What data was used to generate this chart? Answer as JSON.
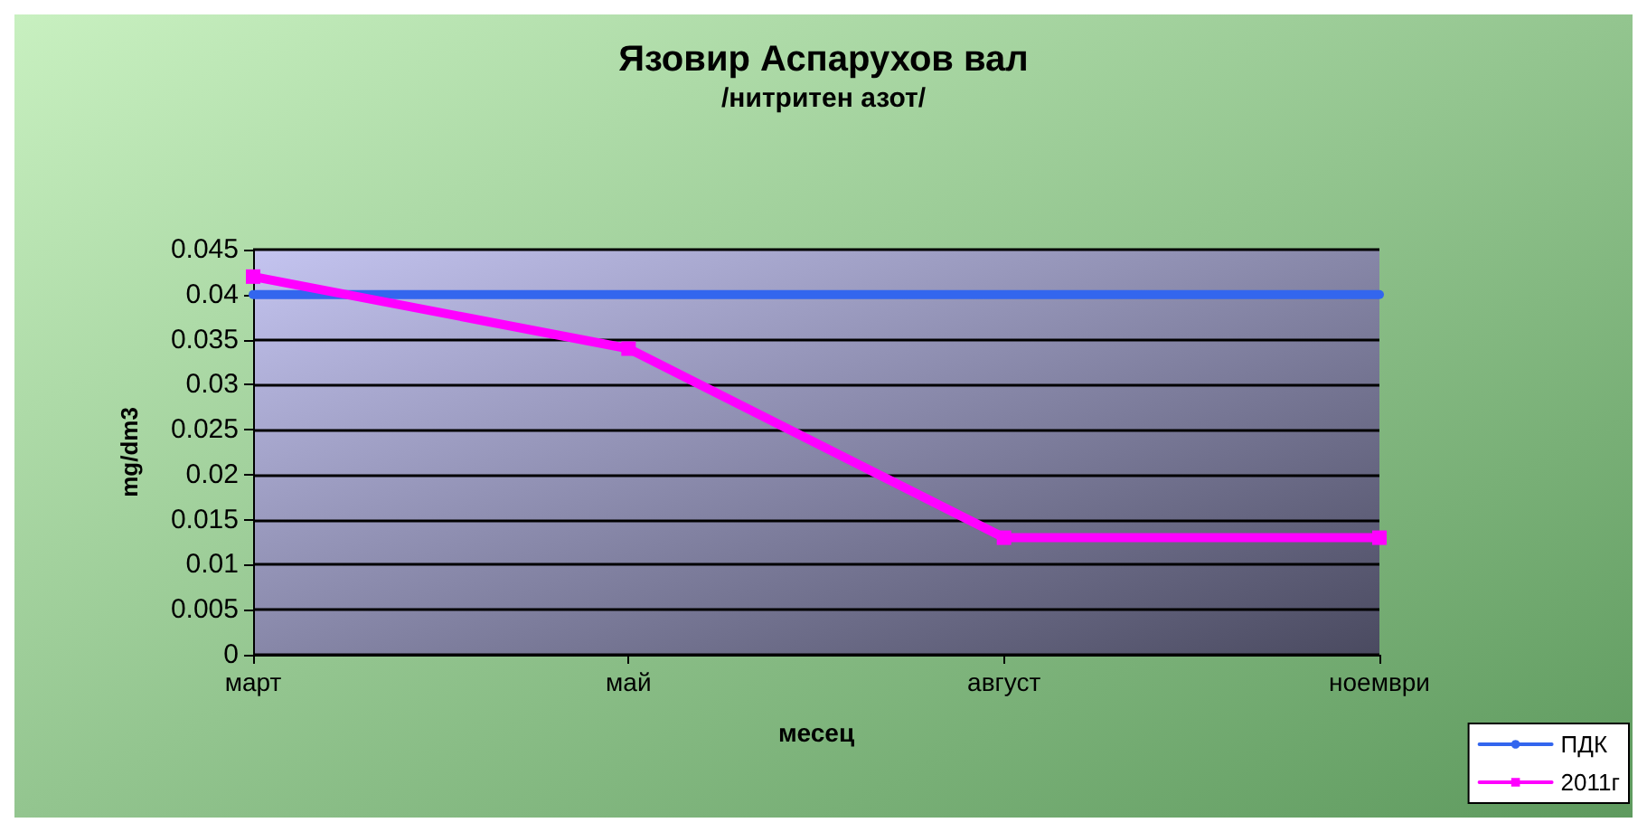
{
  "chart_data": {
    "type": "line",
    "title": "Язовир Аспарухов вал",
    "subtitle": "/нитритен азот/",
    "xlabel": "месец",
    "ylabel": "mg/dm3",
    "categories": [
      "март",
      "май",
      "август",
      "ноември"
    ],
    "series": [
      {
        "name": "ПДК",
        "color": "#3366ee",
        "values": [
          0.04,
          0.04,
          0.04,
          0.04
        ],
        "marker": "none"
      },
      {
        "name": "2011г",
        "color": "#ff00ff",
        "values": [
          0.042,
          0.034,
          0.013,
          0.013
        ],
        "marker": "square"
      }
    ],
    "ylim": [
      0,
      0.045
    ],
    "yticks": [
      0,
      0.005,
      0.01,
      0.015,
      0.02,
      0.025,
      0.03,
      0.035,
      0.04,
      0.045
    ],
    "grid": "y",
    "legend": "bottom right"
  }
}
